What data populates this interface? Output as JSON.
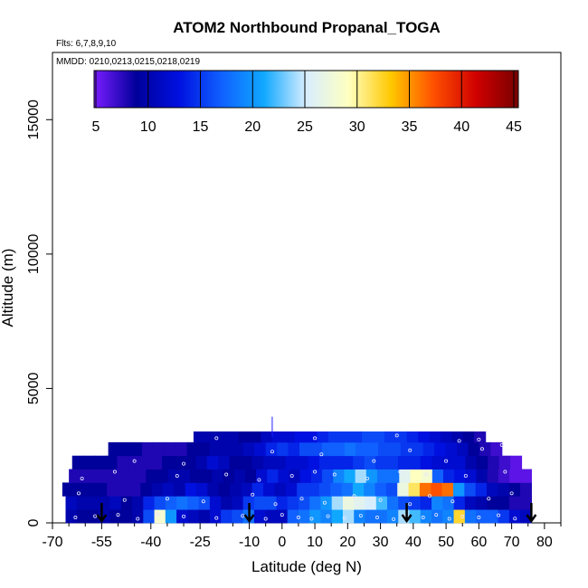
{
  "chart_data": {
    "type": "heatmap",
    "title": "ATOM2 Northbound Propanal_TOGA",
    "flights_note": "Flts: 6,7,8,9,10",
    "dates_note": "MMDD: 0210,0213,0215,0218,0219",
    "xlabel": "Latitude (deg N)",
    "ylabel": "Altitude (m)",
    "xlim": [
      -70,
      85
    ],
    "ylim": [
      0,
      17500
    ],
    "x_ticks": [
      -70,
      -55,
      -40,
      -25,
      -10,
      0,
      10,
      20,
      30,
      40,
      50,
      60,
      70,
      80
    ],
    "x_tick_labels": [
      "-70",
      "-55",
      "-40",
      "-25",
      "-10",
      "0",
      "10",
      "20",
      "30",
      "40",
      "50",
      "60",
      "70",
      "80"
    ],
    "x_minor_ticks": [
      -65,
      -60,
      -50,
      -45,
      -35,
      -30,
      -20,
      -15,
      -5,
      5,
      15,
      25,
      35,
      45,
      55,
      65,
      75,
      85
    ],
    "y_ticks": [
      0,
      5000,
      10000,
      15000
    ],
    "y_tick_labels": [
      "0",
      "5000",
      "10000",
      "15000"
    ],
    "colorbar": {
      "min": 5,
      "max": 45,
      "ticks": [
        5,
        10,
        15,
        20,
        25,
        30,
        35,
        40,
        45
      ],
      "tick_labels": [
        "5",
        "10",
        "15",
        "20",
        "25",
        "30",
        "35",
        "40",
        "45"
      ],
      "colors": [
        "#7a1cff",
        "#00009a",
        "#0010e0",
        "#1060ff",
        "#10a8ff",
        "#d8eeff",
        "#ffffc0",
        "#ffc800",
        "#ff5000",
        "#d00000",
        "#780000"
      ]
    },
    "layers": [
      {
        "alt_range": [
          0,
          500
        ],
        "lat_range": [
          -66,
          76
        ],
        "values": [
          10,
          9,
          9,
          10,
          9,
          9,
          10,
          16,
          28,
          20,
          12,
          11,
          10,
          12,
          15,
          16,
          18,
          12,
          11,
          11,
          17,
          18,
          20,
          19,
          21,
          24,
          19,
          18,
          18,
          19,
          24,
          22,
          19,
          18,
          19,
          32,
          18,
          17,
          17,
          15,
          12,
          11
        ]
      },
      {
        "alt_range": [
          500,
          1000
        ],
        "lat_range": [
          -66,
          76
        ],
        "values": [
          11,
          10,
          10,
          10,
          11,
          9,
          10,
          14,
          16,
          17,
          18,
          17,
          16,
          12,
          10,
          11,
          15,
          16,
          16,
          14,
          15,
          16,
          18,
          20,
          24,
          27,
          26,
          25,
          22,
          18,
          16,
          15,
          14,
          19,
          18,
          14,
          11,
          10,
          9,
          9,
          8,
          8
        ]
      },
      {
        "alt_range": [
          1000,
          1500
        ],
        "lat_range": [
          -67,
          76
        ],
        "values": [
          9,
          9,
          9,
          9,
          8,
          8,
          8,
          9,
          10,
          11,
          10,
          13,
          12,
          10,
          9,
          10,
          11,
          14,
          12,
          11,
          12,
          15,
          15,
          16,
          17,
          18,
          21,
          19,
          17,
          16,
          27,
          31,
          36,
          37,
          36,
          20,
          16,
          14,
          11,
          10,
          9,
          8
        ]
      },
      {
        "alt_range": [
          1500,
          2000
        ],
        "lat_range": [
          -65,
          76
        ],
        "values": [
          8,
          8,
          8,
          8,
          8,
          8,
          8,
          9,
          9,
          10,
          10,
          9,
          9,
          10,
          9,
          10,
          9,
          12,
          14,
          12,
          11,
          13,
          14,
          16,
          19,
          21,
          24,
          20,
          18,
          18,
          26,
          29,
          28,
          17,
          14,
          13,
          12,
          10,
          8,
          7,
          6,
          6
        ]
      },
      {
        "alt_range": [
          2000,
          2500
        ],
        "lat_range": [
          -64,
          73
        ],
        "values": [
          9,
          9,
          9,
          9,
          8,
          8,
          8,
          8,
          9,
          9,
          9,
          10,
          12,
          11,
          9,
          9,
          10,
          11,
          11,
          12,
          12,
          13,
          14,
          14,
          14,
          15,
          16,
          15,
          15,
          14,
          14,
          13,
          12,
          12,
          12,
          10,
          9,
          8,
          7,
          6
        ]
      },
      {
        "alt_range": [
          2500,
          3000
        ],
        "lat_range": [
          -53,
          67
        ],
        "values": [
          9,
          9,
          9,
          8,
          8,
          8,
          8,
          9,
          9,
          10,
          10,
          10,
          11,
          12,
          14,
          15,
          14,
          16,
          16,
          17,
          17,
          18,
          17,
          17,
          16,
          16,
          15,
          15,
          14,
          13,
          12,
          11,
          9,
          8,
          7
        ]
      },
      {
        "alt_range": [
          3000,
          3400
        ],
        "lat_range": [
          -27,
          62
        ],
        "values": [
          10,
          10,
          10,
          10,
          9,
          9,
          11,
          12,
          12,
          13,
          13,
          14,
          15,
          15,
          15,
          16,
          16,
          15,
          15,
          14,
          13,
          12,
          11,
          10,
          9,
          8
        ]
      }
    ],
    "vertical_marker": {
      "lat": -3,
      "alt_range": [
        3200,
        3950
      ]
    },
    "arrows_lat": [
      -55,
      -10,
      38,
      76
    ],
    "sample_points": [
      [
        -63,
        200
      ],
      [
        -57,
        250
      ],
      [
        -50,
        300
      ],
      [
        -44,
        150
      ],
      [
        -38,
        320
      ],
      [
        -30,
        240
      ],
      [
        -20,
        180
      ],
      [
        -12,
        260
      ],
      [
        -5,
        150
      ],
      [
        0,
        300
      ],
      [
        5,
        200
      ],
      [
        9,
        150
      ],
      [
        14,
        250
      ],
      [
        19,
        180
      ],
      [
        24,
        270
      ],
      [
        29,
        200
      ],
      [
        34,
        140
      ],
      [
        37,
        260
      ],
      [
        43,
        200
      ],
      [
        47,
        300
      ],
      [
        51,
        150
      ],
      [
        55,
        240
      ],
      [
        60,
        200
      ],
      [
        66,
        280
      ],
      [
        71,
        160
      ],
      [
        -62,
        1100
      ],
      [
        -48,
        850
      ],
      [
        -35,
        900
      ],
      [
        -24,
        800
      ],
      [
        -9,
        1050
      ],
      [
        -2,
        700
      ],
      [
        6,
        900
      ],
      [
        13,
        750
      ],
      [
        22,
        1000
      ],
      [
        30,
        850
      ],
      [
        39,
        700
      ],
      [
        45,
        1000
      ],
      [
        52,
        800
      ],
      [
        63,
        900
      ],
      [
        70,
        1100
      ],
      [
        -61,
        1650
      ],
      [
        -51,
        1900
      ],
      [
        -32,
        1750
      ],
      [
        -17,
        1800
      ],
      [
        -7,
        1600
      ],
      [
        3,
        1750
      ],
      [
        10,
        1900
      ],
      [
        16,
        1800
      ],
      [
        26,
        1650
      ],
      [
        36,
        1900
      ],
      [
        44,
        1800
      ],
      [
        56,
        1750
      ],
      [
        68,
        1900
      ],
      [
        -45,
        2300
      ],
      [
        -30,
        2200
      ],
      [
        -3,
        2650
      ],
      [
        12,
        2550
      ],
      [
        28,
        2300
      ],
      [
        39,
        2700
      ],
      [
        50,
        2300
      ],
      [
        61,
        2750
      ],
      [
        67,
        2900
      ],
      [
        -20,
        3150
      ],
      [
        10,
        3150
      ],
      [
        35,
        3250
      ],
      [
        54,
        3050
      ],
      [
        60,
        3100
      ]
    ]
  }
}
